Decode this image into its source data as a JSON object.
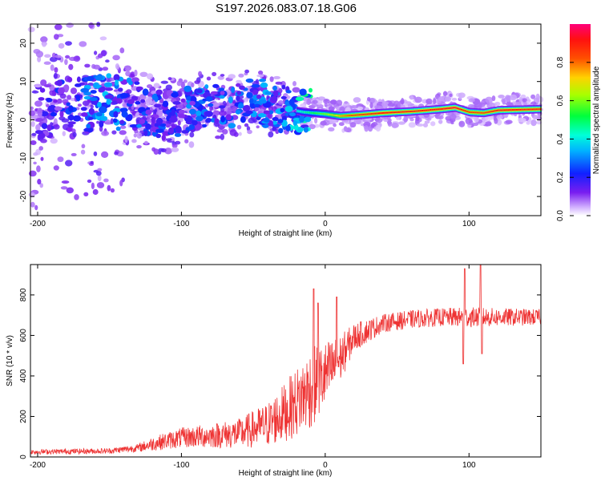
{
  "title": "S197.2026.083.07.18.G06",
  "colors": {
    "signal": "#ee3333",
    "frame": "#000000",
    "background": "#ffffff"
  },
  "chart_data": [
    {
      "type": "heatmap",
      "name": "spectrogram",
      "xlabel": "Height of straight line (km)",
      "ylabel": "Frequency (Hz)",
      "xlim": [
        -205,
        150
      ],
      "ylim": [
        -25,
        25
      ],
      "xticks": [
        -200,
        -100,
        0,
        100
      ],
      "yticks": [
        -20,
        -10,
        0,
        10,
        20
      ],
      "colorbar": {
        "label": "Normalized spectral amplitude",
        "range": [
          0.0,
          1.0
        ],
        "ticks": [
          0.0,
          0.2,
          0.4,
          0.6,
          0.8
        ],
        "tick_labels": [
          "0.0",
          "0.2",
          "0.4",
          "0.6",
          "0.8"
        ],
        "colormap": "rainbow (white → violet → blue → cyan → green → yellow → red → magenta)"
      },
      "ridge": {
        "description": "dominant frequency ridge vs. height",
        "x": [
          -200,
          -170,
          -150,
          -130,
          -110,
          -90,
          -70,
          -50,
          -30,
          -15,
          0,
          10,
          20,
          40,
          60,
          80,
          90,
          100,
          110,
          120,
          150
        ],
        "y": [
          2,
          4,
          5,
          3,
          1,
          3,
          4,
          5,
          3,
          2,
          1.5,
          1.0,
          1.2,
          1.8,
          2.2,
          2.8,
          3.2,
          2.0,
          1.8,
          2.5,
          2.8
        ],
        "amplitude": [
          0.15,
          0.3,
          0.35,
          0.3,
          0.25,
          0.3,
          0.3,
          0.3,
          0.35,
          0.45,
          0.6,
          0.75,
          0.85,
          0.92,
          0.9,
          0.92,
          0.95,
          0.85,
          0.85,
          0.92,
          0.9
        ]
      }
    },
    {
      "type": "line",
      "name": "snr",
      "xlabel": "Height of straight line (km)",
      "ylabel": "SNR (10 * v/v)",
      "xlim": [
        -205,
        150
      ],
      "ylim": [
        0,
        950
      ],
      "xticks": [
        -200,
        -100,
        0,
        100
      ],
      "yticks": [
        0,
        200,
        400,
        600,
        800
      ],
      "series": [
        {
          "name": "SNR",
          "envelope_x": [
            -205,
            -150,
            -130,
            -120,
            -100,
            -80,
            -60,
            -40,
            -30,
            -20,
            -10,
            0,
            10,
            20,
            40,
            60,
            80,
            100,
            120,
            150
          ],
          "envelope_y": [
            25,
            30,
            45,
            65,
            95,
            105,
            115,
            160,
            210,
            270,
            340,
            400,
            480,
            590,
            660,
            680,
            690,
            690,
            690,
            690
          ],
          "spread": [
            12,
            14,
            20,
            35,
            50,
            60,
            75,
            110,
            140,
            170,
            200,
            170,
            120,
            70,
            45,
            45,
            45,
            50,
            45,
            40
          ],
          "spikes": [
            {
              "x": -8,
              "y": 830
            },
            {
              "x": -5,
              "y": 760
            },
            {
              "x": 8,
              "y": 790
            },
            {
              "x": 96,
              "y": 460
            },
            {
              "x": 97,
              "y": 930
            },
            {
              "x": 108,
              "y": 950
            },
            {
              "x": 109,
              "y": 510
            }
          ]
        }
      ]
    }
  ]
}
